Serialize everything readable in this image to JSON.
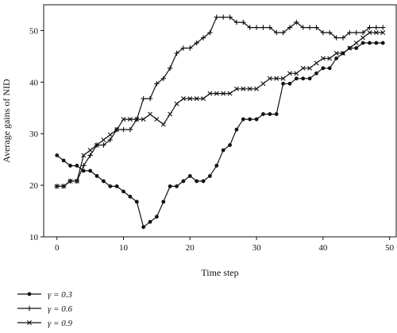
{
  "chart_data": {
    "type": "line",
    "title": "",
    "xlabel": "Time step",
    "ylabel": "Average gains of NID",
    "xlim": [
      -2,
      51
    ],
    "ylim": [
      10,
      55
    ],
    "xticks": [
      0,
      10,
      20,
      30,
      40,
      50
    ],
    "yticks": [
      10,
      20,
      30,
      40,
      50
    ],
    "grid": false,
    "legend_position": "bottom-left",
    "x": [
      0,
      1,
      2,
      3,
      4,
      5,
      6,
      7,
      8,
      9,
      10,
      11,
      12,
      13,
      14,
      15,
      16,
      17,
      18,
      19,
      20,
      21,
      22,
      23,
      24,
      25,
      26,
      27,
      28,
      29,
      30,
      31,
      32,
      33,
      34,
      35,
      36,
      37,
      38,
      39,
      40,
      41,
      42,
      43,
      44,
      45,
      46,
      47,
      48,
      49
    ],
    "series": [
      {
        "name": "γ = 0.3",
        "marker": "dot",
        "color": "#111111",
        "values": [
          25.8,
          24.8,
          23.8,
          23.8,
          22.8,
          22.8,
          21.8,
          20.8,
          19.8,
          19.8,
          18.8,
          17.8,
          16.8,
          11.9,
          12.9,
          13.9,
          16.8,
          19.8,
          19.8,
          20.8,
          21.8,
          20.8,
          20.8,
          21.8,
          23.8,
          26.8,
          27.8,
          30.8,
          32.8,
          32.8,
          32.8,
          33.8,
          33.8,
          33.8,
          39.7,
          39.7,
          40.7,
          40.7,
          40.7,
          41.7,
          42.7,
          42.7,
          44.6,
          45.6,
          46.6,
          46.6,
          47.6,
          47.6,
          47.6,
          47.6
        ]
      },
      {
        "name": "γ = 0.6",
        "marker": "plus",
        "color": "#111111",
        "values": [
          19.8,
          19.8,
          20.8,
          20.8,
          23.8,
          25.8,
          27.8,
          27.8,
          28.8,
          30.8,
          30.8,
          30.8,
          32.8,
          36.8,
          36.8,
          39.7,
          40.7,
          42.7,
          45.6,
          46.6,
          46.6,
          47.6,
          48.6,
          49.6,
          52.6,
          52.6,
          52.6,
          51.6,
          51.6,
          50.6,
          50.6,
          50.6,
          50.6,
          49.6,
          49.6,
          50.6,
          51.6,
          50.6,
          50.6,
          50.6,
          49.6,
          49.6,
          48.6,
          48.6,
          49.6,
          49.6,
          49.6,
          50.6,
          50.6,
          50.6
        ]
      },
      {
        "name": "γ = 0.9",
        "marker": "cross",
        "color": "#111111",
        "values": [
          19.8,
          19.8,
          20.8,
          20.8,
          25.8,
          26.8,
          27.8,
          28.8,
          29.8,
          30.8,
          32.8,
          32.8,
          32.8,
          32.8,
          33.8,
          32.8,
          31.8,
          33.8,
          35.8,
          36.8,
          36.8,
          36.8,
          36.8,
          37.8,
          37.8,
          37.8,
          37.8,
          38.7,
          38.7,
          38.7,
          38.7,
          39.7,
          40.7,
          40.7,
          40.7,
          41.7,
          41.7,
          42.7,
          42.7,
          43.7,
          44.6,
          44.6,
          45.6,
          45.6,
          46.6,
          47.6,
          48.6,
          49.6,
          49.6,
          49.6
        ]
      }
    ]
  }
}
